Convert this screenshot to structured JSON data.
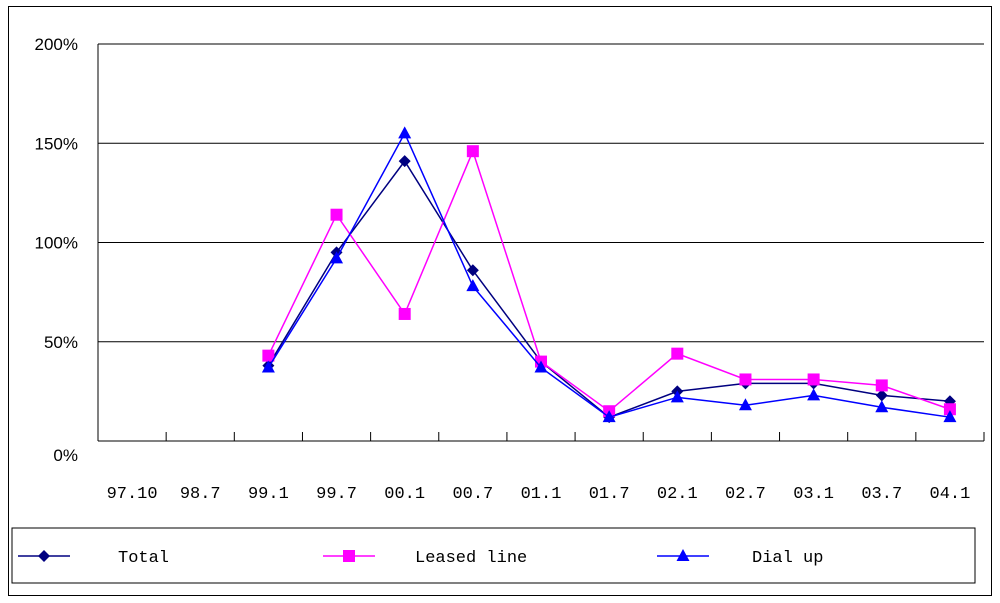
{
  "chart_data": {
    "type": "line",
    "title": "",
    "xlabel": "",
    "ylabel": "",
    "x": [
      "97.10",
      "98.7",
      "99.1",
      "99.7",
      "00.1",
      "00.7",
      "01.1",
      "01.7",
      "02.1",
      "02.7",
      "03.1",
      "03.7",
      "04.1"
    ],
    "ylim": [
      0,
      200
    ],
    "yticks": [
      "0%",
      "50%",
      "100%",
      "150%",
      "200%"
    ],
    "grid": true,
    "legend": "bottom",
    "series": [
      {
        "name": "Total",
        "color": "#000080",
        "marker": "diamond",
        "values": [
          null,
          null,
          38,
          95,
          141,
          86,
          40,
          12,
          25,
          29,
          29,
          23,
          20
        ]
      },
      {
        "name": "Leased line",
        "color": "#ff00ff",
        "marker": "square",
        "values": [
          null,
          null,
          43,
          114,
          64,
          146,
          40,
          15,
          44,
          31,
          31,
          28,
          16
        ]
      },
      {
        "name": "Dial up",
        "color": "#0000ff",
        "marker": "triangle",
        "values": [
          null,
          null,
          37,
          92,
          155,
          78,
          37,
          12,
          22,
          18,
          23,
          17,
          12
        ]
      }
    ]
  }
}
